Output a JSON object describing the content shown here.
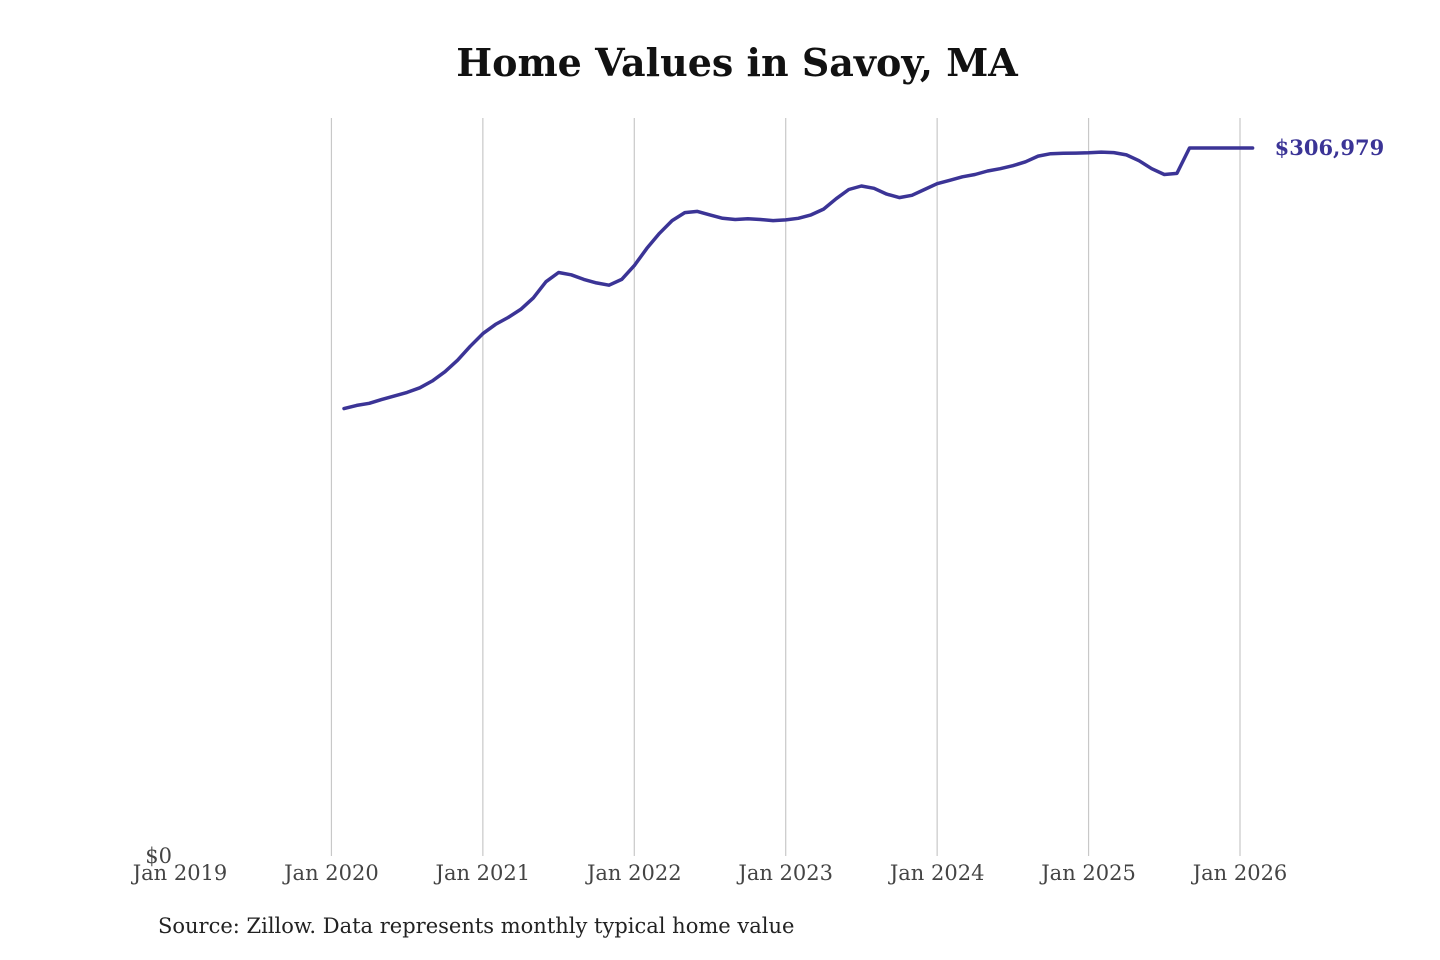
{
  "chart_data": {
    "type": "line",
    "title": "Home Values in Savoy, MA",
    "source": "Source: Zillow. Data represents monthly typical home value",
    "xlabel": "",
    "ylabel": "",
    "xlim": [
      2019.0,
      2026.0
    ],
    "ylim": [
      0,
      320000
    ],
    "x_ticks": [
      {
        "value": 2019,
        "label": "Jan 2019"
      },
      {
        "value": 2020,
        "label": "Jan 2020"
      },
      {
        "value": 2021,
        "label": "Jan 2021"
      },
      {
        "value": 2022,
        "label": "Jan 2022"
      },
      {
        "value": 2023,
        "label": "Jan 2023"
      },
      {
        "value": 2024,
        "label": "Jan 2024"
      },
      {
        "value": 2025,
        "label": "Jan 2025"
      },
      {
        "value": 2026,
        "label": "Jan 2026"
      }
    ],
    "y_ticks": [
      {
        "value": 0,
        "label": "$0"
      }
    ],
    "grid": "vertical",
    "line_color": "#3b3496",
    "end_label": "$306,979",
    "series": [
      {
        "x": [
          2020.0833,
          2020.1667,
          2020.25,
          2020.3333,
          2020.4167,
          2020.5,
          2020.5833,
          2020.6667,
          2020.75,
          2020.8333,
          2020.9167,
          2021.0,
          2021.0833,
          2021.1667,
          2021.25,
          2021.3333,
          2021.4167,
          2021.5,
          2021.5833,
          2021.6667,
          2021.75,
          2021.8333,
          2021.9167,
          2022.0,
          2022.0833,
          2022.1667,
          2022.25,
          2022.3333,
          2022.4167,
          2022.5,
          2022.5833,
          2022.6667,
          2022.75,
          2022.8333,
          2022.9167,
          2023.0,
          2023.0833,
          2023.1667,
          2023.25,
          2023.3333,
          2023.4167,
          2023.5,
          2023.5833,
          2023.6667,
          2023.75,
          2023.8333,
          2023.9167,
          2024.0,
          2024.0833,
          2024.1667,
          2024.25,
          2024.3333,
          2024.4167,
          2024.5,
          2024.5833,
          2024.6667,
          2024.75,
          2024.8333,
          2024.9167,
          2025.0,
          2025.0833,
          2025.1667,
          2025.25,
          2025.3333,
          2025.4167,
          2025.5,
          2025.5833,
          2025.6667,
          2025.75,
          2025.8333,
          2025.9167,
          2026.0,
          2026.0833
        ],
        "values": [
          194000,
          195400,
          196300,
          198000,
          199500,
          201000,
          203000,
          206000,
          210000,
          215000,
          221000,
          226500,
          230500,
          233500,
          237000,
          242000,
          249000,
          253000,
          252000,
          250000,
          248500,
          247500,
          250000,
          256000,
          263500,
          270000,
          275500,
          279000,
          279500,
          278000,
          276500,
          276000,
          276300,
          276000,
          275500,
          275800,
          276500,
          278000,
          280500,
          285000,
          289000,
          290500,
          289500,
          287000,
          285500,
          286500,
          289000,
          291500,
          293000,
          294500,
          295500,
          297000,
          298000,
          299300,
          301000,
          303500,
          304500,
          304700,
          304800,
          304900,
          305200,
          305000,
          304000,
          301500,
          298000,
          295500,
          296000,
          306979,
          306979,
          306979,
          306979,
          306979,
          306979
        ]
      }
    ]
  }
}
